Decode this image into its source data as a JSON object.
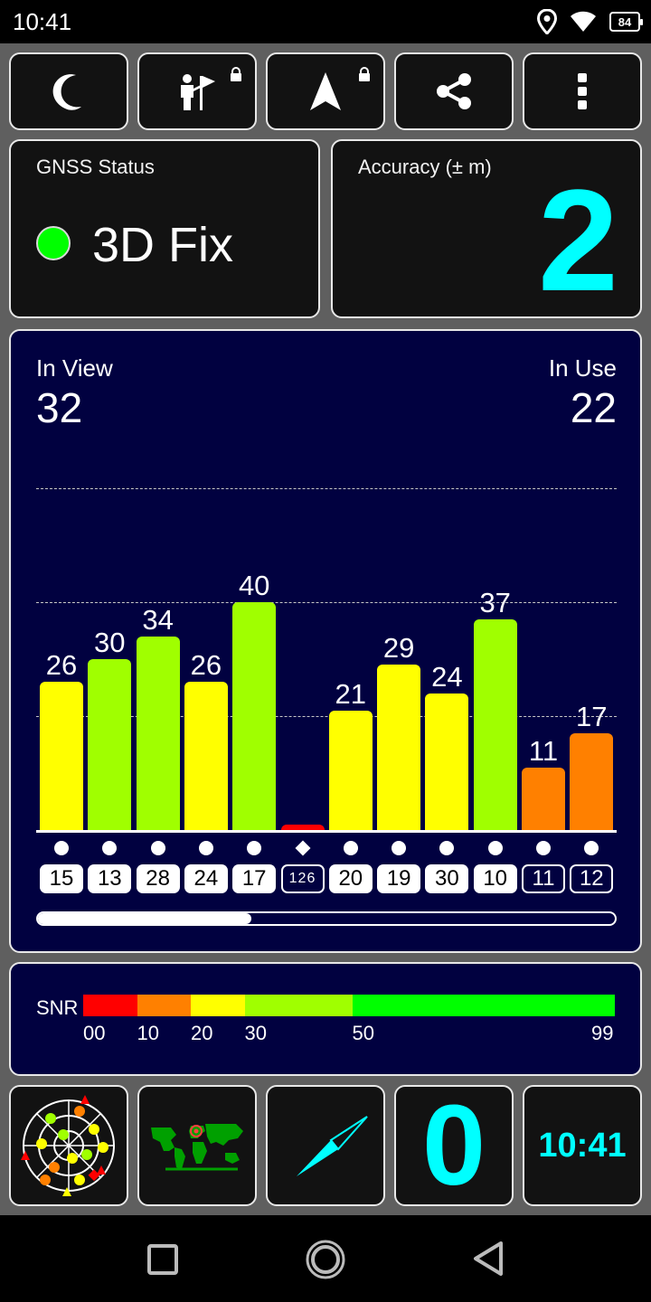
{
  "status_bar": {
    "time": "10:41",
    "battery": "84"
  },
  "toolbar": {
    "buttons": [
      {
        "icon": "moon-icon",
        "locked": false
      },
      {
        "icon": "flag-person-icon",
        "locked": true
      },
      {
        "icon": "navigation-arrow-icon",
        "locked": true
      },
      {
        "icon": "share-icon",
        "locked": false
      },
      {
        "icon": "more-vert-icon",
        "locked": false
      }
    ]
  },
  "gnss_status": {
    "label": "GNSS Status",
    "value": "3D Fix",
    "indicator_color": "#00ff00"
  },
  "accuracy": {
    "label": "Accuracy (± m)",
    "value": "2"
  },
  "satellites": {
    "in_view_label": "In View",
    "in_view": "32",
    "in_use_label": "In Use",
    "in_use": "22"
  },
  "chart_data": {
    "type": "bar",
    "categories": [
      "15",
      "13",
      "28",
      "24",
      "17",
      "126",
      "20",
      "19",
      "30",
      "10",
      "11",
      "12"
    ],
    "values": [
      26,
      30,
      34,
      26,
      40,
      1,
      21,
      29,
      24,
      37,
      11,
      17
    ],
    "labels": [
      "26",
      "30",
      "34",
      "26",
      "40",
      "",
      "21",
      "29",
      "24",
      "37",
      "11",
      "17"
    ],
    "in_use": [
      true,
      true,
      true,
      true,
      true,
      false,
      true,
      true,
      true,
      true,
      false,
      false
    ],
    "markers": [
      "dot",
      "dot",
      "dot",
      "dot",
      "dot",
      "diamond",
      "dot",
      "dot",
      "dot",
      "dot",
      "dot",
      "dot"
    ],
    "ylim": [
      0,
      60
    ],
    "grid_values": [
      20,
      40,
      60
    ],
    "scroll_fraction": 0.37
  },
  "snr_legend": {
    "label": "SNR",
    "segments": [
      {
        "from": 0,
        "to": 10,
        "color": "#ff0000"
      },
      {
        "from": 10,
        "to": 20,
        "color": "#ff8000"
      },
      {
        "from": 20,
        "to": 30,
        "color": "#ffff00"
      },
      {
        "from": 30,
        "to": 50,
        "color": "#a0ff00"
      },
      {
        "from": 50,
        "to": 99,
        "color": "#00ff00"
      }
    ],
    "ticks": [
      "00",
      "10",
      "20",
      "30",
      "50",
      "99"
    ]
  },
  "bottom_bar": {
    "count": "0",
    "clock": "10:41"
  },
  "colors": {
    "cyan": "#00ffff",
    "panel": "#010140",
    "bar_red": "#ff0000",
    "bar_orange": "#ff8000",
    "bar_yellow": "#ffff00",
    "bar_lime": "#a0ff00"
  }
}
